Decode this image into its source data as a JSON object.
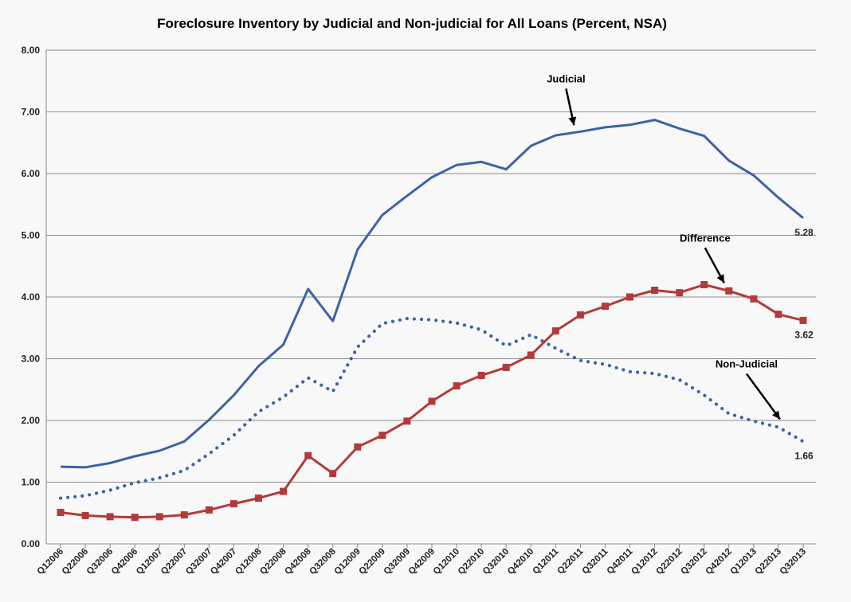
{
  "chart_data": {
    "type": "line",
    "title": "Foreclosure Inventory by Judicial and Non-judicial for All Loans (Percent, NSA)",
    "xlabel": "",
    "ylabel": "",
    "ylim": [
      0,
      8
    ],
    "y_ticks": [
      "0.00",
      "1.00",
      "2.00",
      "3.00",
      "4.00",
      "5.00",
      "6.00",
      "7.00",
      "8.00"
    ],
    "grid": true,
    "categories": [
      "Q12006",
      "Q22006",
      "Q32006",
      "Q42006",
      "Q12007",
      "Q22007",
      "Q32007",
      "Q42007",
      "Q12008",
      "Q22008",
      "Q42008",
      "Q32008",
      "Q12009",
      "Q22009",
      "Q32009",
      "Q42009",
      "Q12010",
      "Q22010",
      "Q32010",
      "Q42010",
      "Q12011",
      "Q22011",
      "Q32011",
      "Q42011",
      "Q12012",
      "Q22012",
      "Q32012",
      "Q42012",
      "Q12013",
      "Q22013",
      "Q32013"
    ],
    "series": [
      {
        "name": "Judicial",
        "color": "#3a64a6",
        "style": "solid",
        "values": [
          1.25,
          1.24,
          1.31,
          1.42,
          1.51,
          1.66,
          2.01,
          2.41,
          2.88,
          3.23,
          4.13,
          3.61,
          4.77,
          5.33,
          5.64,
          5.94,
          6.14,
          6.19,
          6.07,
          6.45,
          6.62,
          6.68,
          6.75,
          6.79,
          6.87,
          6.73,
          6.61,
          6.21,
          5.97,
          5.61,
          5.28
        ]
      },
      {
        "name": "Non-Judicial",
        "color": "#3a64a6",
        "style": "dotted",
        "values": [
          0.74,
          0.78,
          0.87,
          0.99,
          1.07,
          1.19,
          1.46,
          1.76,
          2.14,
          2.38,
          2.69,
          2.47,
          3.19,
          3.57,
          3.65,
          3.63,
          3.58,
          3.47,
          3.21,
          3.39,
          3.17,
          2.97,
          2.91,
          2.79,
          2.76,
          2.66,
          2.41,
          2.11,
          1.99,
          1.89,
          1.66
        ]
      },
      {
        "name": "Difference",
        "color": "#b33a3a",
        "style": "solid-markers",
        "values": [
          0.51,
          0.46,
          0.44,
          0.43,
          0.44,
          0.47,
          0.55,
          0.65,
          0.74,
          0.85,
          1.43,
          1.14,
          1.57,
          1.76,
          1.99,
          2.31,
          2.56,
          2.73,
          2.86,
          3.06,
          3.45,
          3.71,
          3.85,
          4.0,
          4.11,
          4.07,
          4.2,
          4.1,
          3.97,
          3.72,
          3.62
        ]
      }
    ],
    "annotations": [
      {
        "text": "Judicial",
        "arrow": true,
        "series_index": 0,
        "category_index": 21
      },
      {
        "text": "Difference",
        "arrow": true,
        "series_index": 2,
        "category_index": 27
      },
      {
        "text": "Non-Judicial",
        "arrow": true,
        "series_index": 1,
        "category_index": 29
      }
    ],
    "end_labels": [
      "5.28",
      "3.62",
      "1.66"
    ]
  }
}
